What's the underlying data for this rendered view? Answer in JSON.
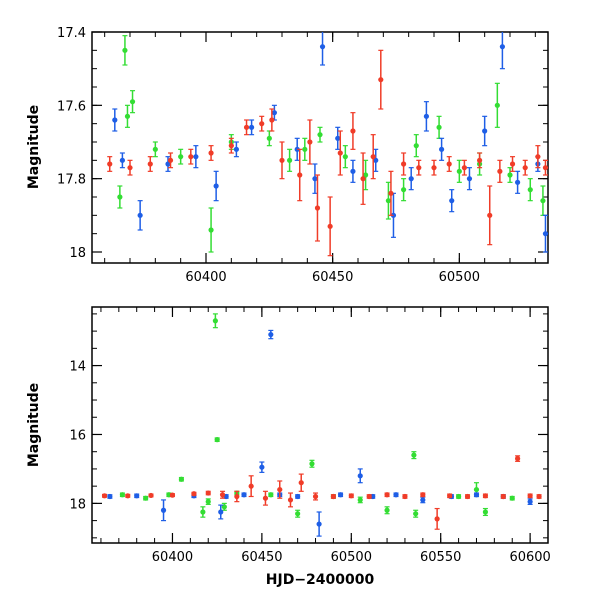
{
  "chart_data": [
    {
      "type": "scatter",
      "ylabel": "Magnitude",
      "xlabel": "",
      "xlim": [
        60355,
        60535
      ],
      "ylim": [
        18.03,
        17.4
      ],
      "y_inverted": true,
      "xticks": [
        "60400",
        "60450",
        "60500"
      ],
      "yticks": [
        "17.4",
        "17.6",
        "17.8",
        "18"
      ],
      "series": [
        {
          "color": "#33dd33",
          "points": [
            [
              60368,
              17.45,
              0.04
            ],
            [
              60369,
              17.63,
              0.03
            ],
            [
              60371,
              17.59,
              0.03
            ],
            [
              60366,
              17.85,
              0.03
            ],
            [
              60380,
              17.72,
              0.02
            ],
            [
              60390,
              17.74,
              0.02
            ],
            [
              60402,
              17.94,
              0.06
            ],
            [
              60410,
              17.7,
              0.02
            ],
            [
              60425,
              17.69,
              0.02
            ],
            [
              60433,
              17.75,
              0.03
            ],
            [
              60439,
              17.72,
              0.03
            ],
            [
              60445,
              17.68,
              0.02
            ],
            [
              60455,
              17.74,
              0.03
            ],
            [
              60463,
              17.79,
              0.04
            ],
            [
              60472,
              17.86,
              0.05
            ],
            [
              60478,
              17.83,
              0.03
            ],
            [
              60483,
              17.71,
              0.03
            ],
            [
              60492,
              17.66,
              0.03
            ],
            [
              60500,
              17.78,
              0.03
            ],
            [
              60508,
              17.76,
              0.03
            ],
            [
              60515,
              17.6,
              0.06
            ],
            [
              60520,
              17.79,
              0.02
            ],
            [
              60528,
              17.83,
              0.03
            ],
            [
              60533,
              17.86,
              0.04
            ]
          ]
        },
        {
          "color": "#1e5ee6",
          "points": [
            [
              60364,
              17.64,
              0.03
            ],
            [
              60367,
              17.75,
              0.02
            ],
            [
              60374,
              17.9,
              0.04
            ],
            [
              60385,
              17.76,
              0.02
            ],
            [
              60396,
              17.74,
              0.03
            ],
            [
              60404,
              17.82,
              0.04
            ],
            [
              60412,
              17.72,
              0.02
            ],
            [
              60418,
              17.66,
              0.02
            ],
            [
              60427,
              17.62,
              0.02
            ],
            [
              60436,
              17.72,
              0.03
            ],
            [
              60443,
              17.8,
              0.04
            ],
            [
              60446,
              17.44,
              0.05
            ],
            [
              60452,
              17.69,
              0.03
            ],
            [
              60458,
              17.78,
              0.03
            ],
            [
              60467,
              17.75,
              0.03
            ],
            [
              60474,
              17.9,
              0.06
            ],
            [
              60481,
              17.8,
              0.03
            ],
            [
              60487,
              17.63,
              0.04
            ],
            [
              60493,
              17.72,
              0.03
            ],
            [
              60497,
              17.86,
              0.03
            ],
            [
              60504,
              17.8,
              0.03
            ],
            [
              60510,
              17.67,
              0.04
            ],
            [
              60517,
              17.44,
              0.06
            ],
            [
              60523,
              17.81,
              0.03
            ],
            [
              60531,
              17.76,
              0.02
            ],
            [
              60534,
              17.95,
              0.05
            ]
          ]
        },
        {
          "color": "#f03c28",
          "points": [
            [
              60362,
              17.76,
              0.02
            ],
            [
              60370,
              17.77,
              0.02
            ],
            [
              60378,
              17.76,
              0.02
            ],
            [
              60386,
              17.75,
              0.02
            ],
            [
              60394,
              17.74,
              0.02
            ],
            [
              60402,
              17.73,
              0.02
            ],
            [
              60410,
              17.71,
              0.02
            ],
            [
              60416,
              17.66,
              0.02
            ],
            [
              60422,
              17.65,
              0.02
            ],
            [
              60426,
              17.64,
              0.03
            ],
            [
              60430,
              17.75,
              0.05
            ],
            [
              60437,
              17.79,
              0.07
            ],
            [
              60441,
              17.7,
              0.06
            ],
            [
              60444,
              17.88,
              0.09
            ],
            [
              60449,
              17.93,
              0.08
            ],
            [
              60453,
              17.73,
              0.06
            ],
            [
              60458,
              17.67,
              0.05
            ],
            [
              60462,
              17.8,
              0.07
            ],
            [
              60466,
              17.74,
              0.06
            ],
            [
              60469,
              17.53,
              0.08
            ],
            [
              60473,
              17.84,
              0.06
            ],
            [
              60478,
              17.76,
              0.03
            ],
            [
              60484,
              17.77,
              0.02
            ],
            [
              60490,
              17.77,
              0.02
            ],
            [
              60496,
              17.76,
              0.02
            ],
            [
              60502,
              17.77,
              0.02
            ],
            [
              60508,
              17.75,
              0.02
            ],
            [
              60512,
              17.9,
              0.08
            ],
            [
              60516,
              17.78,
              0.03
            ],
            [
              60521,
              17.76,
              0.02
            ],
            [
              60526,
              17.77,
              0.02
            ],
            [
              60531,
              17.74,
              0.03
            ],
            [
              60534,
              17.77,
              0.02
            ]
          ]
        }
      ]
    },
    {
      "type": "scatter",
      "ylabel": "Magnitude",
      "xlabel": "HJD−2400000",
      "xlim": [
        60355,
        60610
      ],
      "ylim": [
        19.15,
        12.3
      ],
      "y_inverted": true,
      "xticks": [
        "60400",
        "60450",
        "60500",
        "60550",
        "60600"
      ],
      "yticks": [
        "14",
        "16",
        "18"
      ],
      "series": [
        {
          "color": "#33dd33",
          "points": [
            [
              60372,
              17.75,
              0.05
            ],
            [
              60385,
              17.85,
              0.05
            ],
            [
              60398,
              17.75,
              0.05
            ],
            [
              60405,
              17.3,
              0.05
            ],
            [
              60417,
              18.25,
              0.15
            ],
            [
              60420,
              17.95,
              0.08
            ],
            [
              60424,
              12.7,
              0.2
            ],
            [
              60425,
              16.15,
              0.05
            ],
            [
              60429,
              18.1,
              0.1
            ],
            [
              60436,
              17.7,
              0.05
            ],
            [
              60455,
              17.75,
              0.05
            ],
            [
              60470,
              18.3,
              0.1
            ],
            [
              60478,
              16.85,
              0.1
            ],
            [
              60490,
              17.8,
              0.05
            ],
            [
              60505,
              17.9,
              0.08
            ],
            [
              60520,
              18.2,
              0.1
            ],
            [
              60535,
              16.6,
              0.1
            ],
            [
              60536,
              18.3,
              0.1
            ],
            [
              60560,
              17.8,
              0.05
            ],
            [
              60570,
              17.6,
              0.2
            ],
            [
              60575,
              18.25,
              0.1
            ],
            [
              60590,
              17.85,
              0.05
            ]
          ]
        },
        {
          "color": "#1e5ee6",
          "points": [
            [
              60365,
              17.8,
              0.05
            ],
            [
              60380,
              17.78,
              0.05
            ],
            [
              60395,
              18.2,
              0.3
            ],
            [
              60412,
              17.78,
              0.05
            ],
            [
              60427,
              18.25,
              0.2
            ],
            [
              60430,
              17.8,
              0.05
            ],
            [
              60440,
              17.75,
              0.05
            ],
            [
              60450,
              16.95,
              0.15
            ],
            [
              60455,
              13.1,
              0.12
            ],
            [
              60460,
              17.75,
              0.05
            ],
            [
              60470,
              17.8,
              0.05
            ],
            [
              60482,
              18.6,
              0.35
            ],
            [
              60494,
              17.75,
              0.05
            ],
            [
              60505,
              17.2,
              0.2
            ],
            [
              60512,
              17.8,
              0.05
            ],
            [
              60525,
              17.75,
              0.05
            ],
            [
              60540,
              17.9,
              0.08
            ],
            [
              60556,
              17.8,
              0.05
            ],
            [
              60570,
              17.75,
              0.05
            ],
            [
              60585,
              17.8,
              0.05
            ],
            [
              60600,
              17.95,
              0.08
            ]
          ]
        },
        {
          "color": "#f03c28",
          "points": [
            [
              60362,
              17.78,
              0.04
            ],
            [
              60375,
              17.78,
              0.04
            ],
            [
              60388,
              17.77,
              0.04
            ],
            [
              60400,
              17.76,
              0.04
            ],
            [
              60412,
              17.72,
              0.04
            ],
            [
              60420,
              17.7,
              0.05
            ],
            [
              60428,
              17.75,
              0.1
            ],
            [
              60436,
              17.8,
              0.15
            ],
            [
              60444,
              17.5,
              0.3
            ],
            [
              60452,
              17.85,
              0.2
            ],
            [
              60460,
              17.6,
              0.25
            ],
            [
              60466,
              17.9,
              0.2
            ],
            [
              60472,
              17.4,
              0.25
            ],
            [
              60480,
              17.8,
              0.1
            ],
            [
              60490,
              17.8,
              0.05
            ],
            [
              60500,
              17.78,
              0.05
            ],
            [
              60510,
              17.8,
              0.05
            ],
            [
              60520,
              17.75,
              0.05
            ],
            [
              60530,
              17.8,
              0.05
            ],
            [
              60540,
              17.75,
              0.05
            ],
            [
              60548,
              18.45,
              0.3
            ],
            [
              60555,
              17.78,
              0.05
            ],
            [
              60565,
              17.8,
              0.05
            ],
            [
              60575,
              17.78,
              0.05
            ],
            [
              60585,
              17.8,
              0.05
            ],
            [
              60593,
              16.7,
              0.08
            ],
            [
              60600,
              17.78,
              0.05
            ],
            [
              60605,
              17.8,
              0.05
            ]
          ]
        }
      ]
    }
  ]
}
